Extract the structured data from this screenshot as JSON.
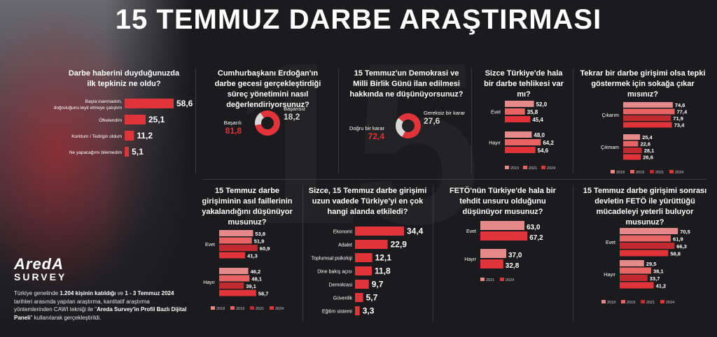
{
  "header": {
    "title": "15 TEMMUZ DARBE ARAŞTIRMASI"
  },
  "brand": {
    "line1": "AredA",
    "line2": "SURVEY"
  },
  "description": {
    "p1": "Türkiye genelinde ",
    "b1": "1.204 kişinin katıldığı",
    "p2": " ve ",
    "b2": "1 - 3 Temmuz 2024",
    "p3": " tarihleri arasında yapılan araştırma, kantitatif araştırma yöntemlerinden CAWI tekniği ile \"",
    "b3": "Areda Survey'in Profil Bazlı Dijital Paneli",
    "p4": "\" kullanılarak gerçekleştirildi."
  },
  "colors": {
    "bg": "#1b1b1e",
    "red": "#e0343a",
    "pink": "#e58a8a",
    "salmon": "#e86464",
    "darkred": "#c02a30",
    "grey": "#d8d8d8",
    "text": "#ffffff"
  },
  "questions": {
    "q1": "Darbe haberini duyduğunuzda ilk tepkiniz ne oldu?",
    "q2": "Cumhurbaşkanı Erdoğan'ın darbe gecesi gerçekleştirdiği süreç yönetimini nasıl değerlendiriyorsunuz?",
    "q3": "15 Temmuz'un Demokrasi ve Milli Birlik Günü ilan edilmesi hakkında ne düşünüyorsunuz?",
    "q4": "Sizce Türkiye'de hala bir darbe tehlikesi var mı?",
    "q5": "Tekrar bir darbe girişimi olsa tepki göstermek için sokağa çıkar mısınız?",
    "q6": "15 Temmuz darbe girişiminin asıl faillerinin yakalandığını düşünüyor musunuz?",
    "q7": "Sizce, 15 Temmuz darbe girişimi uzun vadede Türkiye'yi en çok hangi alanda etkiledi?",
    "q8": "FETÖ'nün Türkiye'de hala bir tehdit unsuru olduğunu düşünüyor musunuz?",
    "q9": "15 Temmuz darbe girişimi sonrası devletin FETÖ ile yürüttüğü mücadeleyi yeterli buluyor musunuz?"
  },
  "chart_data": [
    {
      "id": "reaction",
      "type": "bar",
      "categories": [
        "Başta inanmadım, doğruluğunu teyit etmeye çalıştım",
        "Öfkelendim",
        "Korktum / Tedirgin oldum",
        "Ne yapacağımı bilemedim"
      ],
      "values": [
        58.6,
        25.1,
        11.2,
        5.1
      ]
    },
    {
      "id": "erdogan",
      "type": "pie",
      "categories": [
        "Başarılı",
        "Başarısız"
      ],
      "values": [
        81.8,
        18.2
      ]
    },
    {
      "id": "democracy_day",
      "type": "pie",
      "categories": [
        "Doğru bir karar",
        "Gereksiz bir karar"
      ],
      "values": [
        72.4,
        27.6
      ]
    },
    {
      "id": "coup_danger",
      "type": "bar",
      "categories": [
        "Evet",
        "Hayır"
      ],
      "legend": [
        "2019",
        "2021",
        "2024"
      ],
      "series": [
        {
          "name": "2019",
          "values": [
            52.0,
            48.0
          ]
        },
        {
          "name": "2021",
          "values": [
            35.8,
            64.2
          ]
        },
        {
          "name": "2024",
          "values": [
            45.4,
            54.6
          ]
        }
      ]
    },
    {
      "id": "take_street",
      "type": "bar",
      "categories": [
        "Çıkarım",
        "Çıkmam"
      ],
      "legend": [
        "2018",
        "2019",
        "2021",
        "2024"
      ],
      "series": [
        {
          "name": "2018",
          "values": [
            74.6,
            25.4
          ]
        },
        {
          "name": "2019",
          "values": [
            77.4,
            22.6
          ]
        },
        {
          "name": "2021",
          "values": [
            71.9,
            28.1
          ]
        },
        {
          "name": "2024",
          "values": [
            73.4,
            26.6
          ]
        }
      ]
    },
    {
      "id": "perpetrators",
      "type": "bar",
      "categories": [
        "Evet",
        "Hayır"
      ],
      "legend": [
        "2018",
        "2019",
        "2021",
        "2024"
      ],
      "series": [
        {
          "name": "2018",
          "values": [
            53.8,
            46.2
          ]
        },
        {
          "name": "2019",
          "values": [
            51.9,
            48.1
          ]
        },
        {
          "name": "2021",
          "values": [
            60.9,
            39.1
          ]
        },
        {
          "name": "2024",
          "values": [
            41.3,
            58.7
          ]
        }
      ]
    },
    {
      "id": "area_effect",
      "type": "bar",
      "categories": [
        "Ekonomi",
        "Adalet",
        "Toplumsal psikoloji",
        "Dine bakış açısı",
        "Demokrasi",
        "Güvenlik",
        "Eğitim sistemi"
      ],
      "values": [
        34.4,
        22.9,
        12.1,
        11.8,
        9.7,
        5.7,
        3.3
      ]
    },
    {
      "id": "feto_threat",
      "type": "bar",
      "categories": [
        "Evet",
        "Hayır"
      ],
      "legend": [
        "2021",
        "2024"
      ],
      "series": [
        {
          "name": "2021",
          "values": [
            63.0,
            37.0
          ]
        },
        {
          "name": "2024",
          "values": [
            67.2,
            32.8
          ]
        }
      ]
    },
    {
      "id": "fight_sufficient",
      "type": "bar",
      "categories": [
        "Evet",
        "Hayır"
      ],
      "legend": [
        "2018",
        "2019",
        "2021",
        "2024"
      ],
      "series": [
        {
          "name": "2018",
          "values": [
            70.5,
            29.5
          ]
        },
        {
          "name": "2019",
          "values": [
            61.9,
            38.1
          ]
        },
        {
          "name": "2021",
          "values": [
            66.3,
            33.7
          ]
        },
        {
          "name": "2024",
          "values": [
            58.8,
            41.2
          ]
        }
      ]
    }
  ]
}
